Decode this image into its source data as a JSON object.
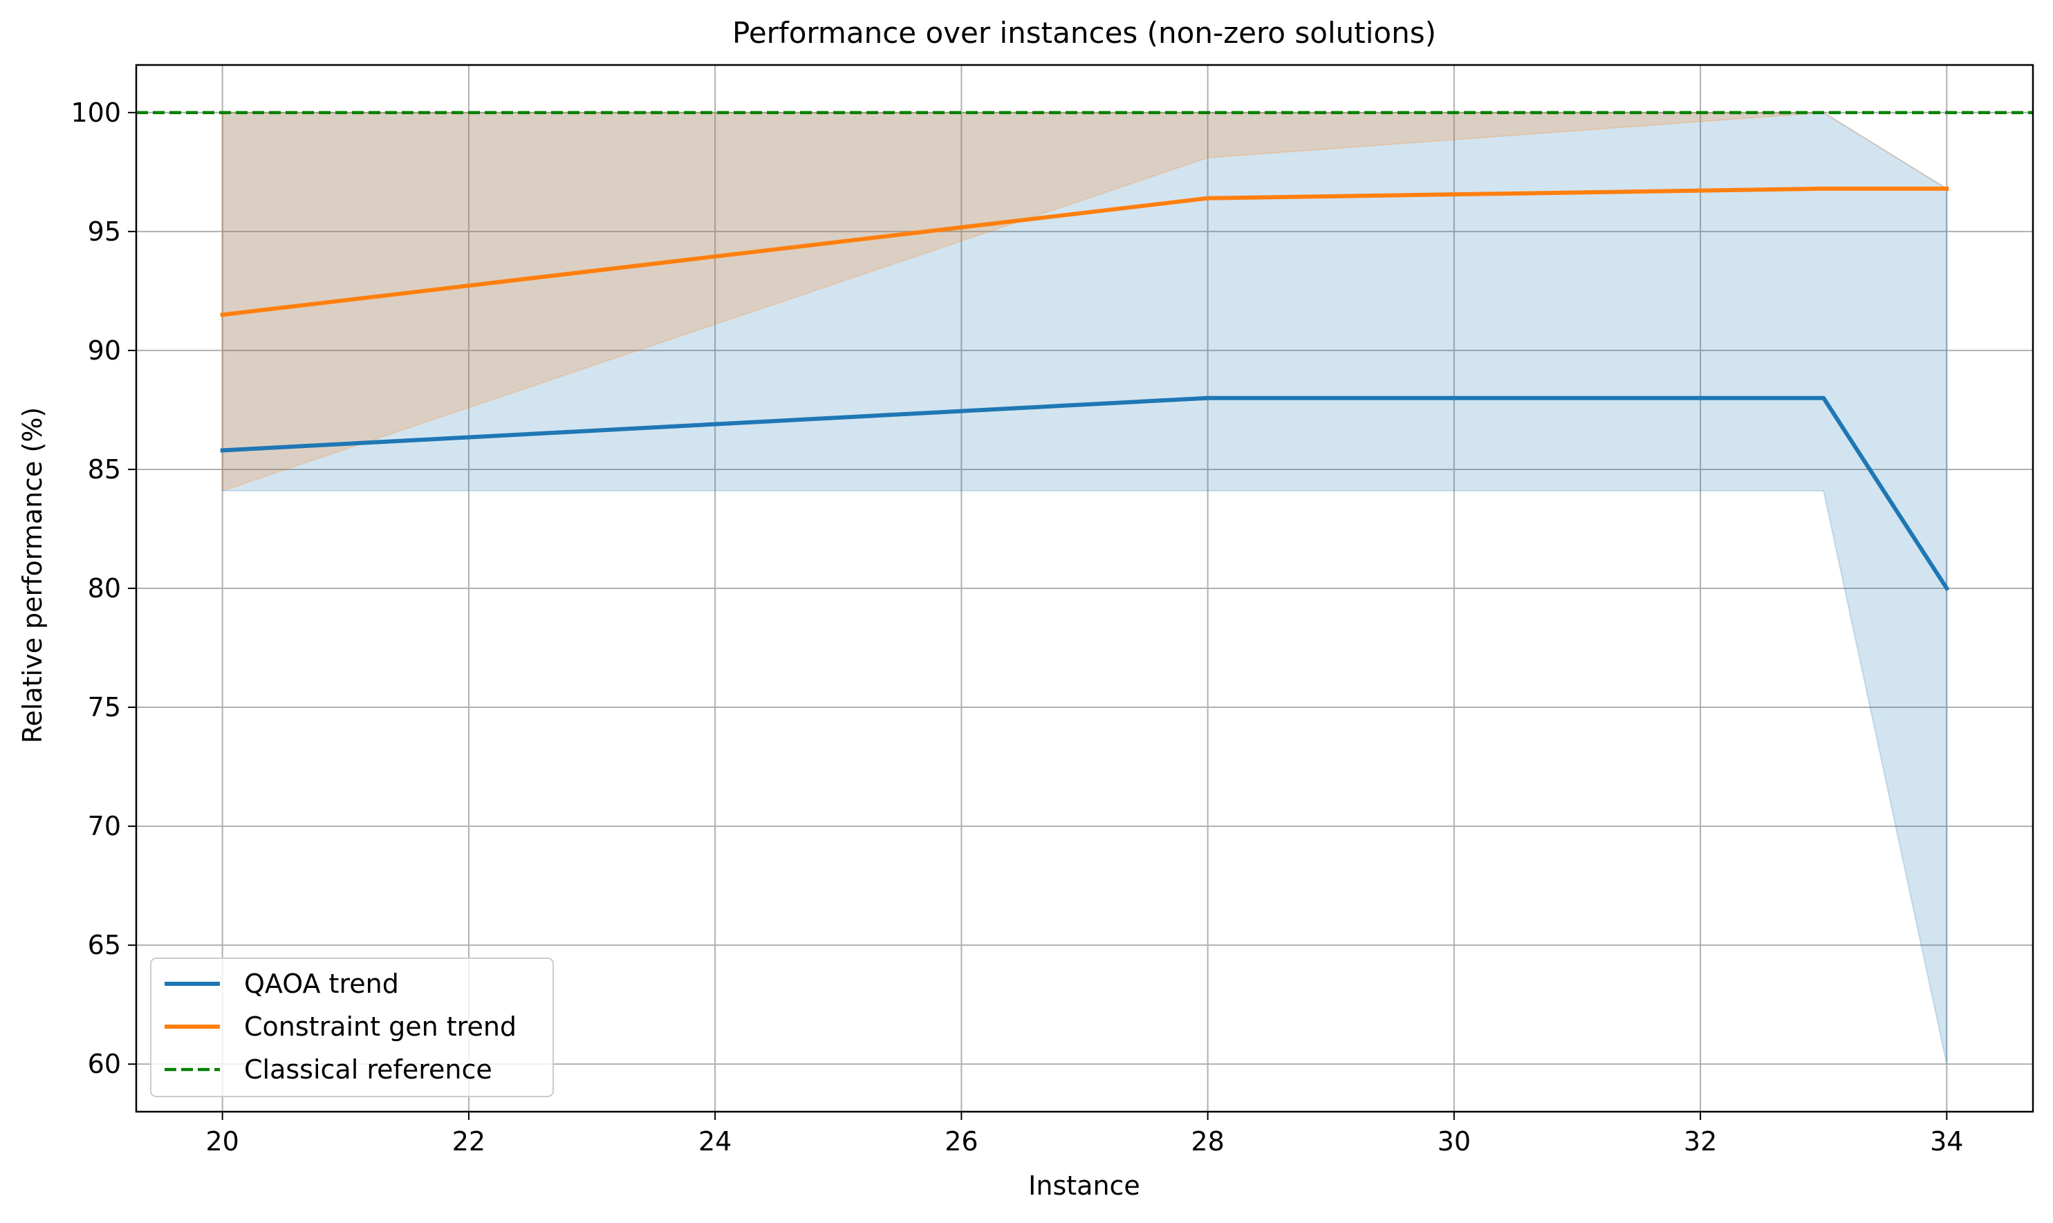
{
  "chart_data": {
    "type": "line",
    "title": "Performance over instances (non-zero solutions)",
    "xlabel": "Instance",
    "ylabel": "Relative performance (%)",
    "xlim": [
      19.3,
      34.7
    ],
    "ylim": [
      58,
      102
    ],
    "xticks": [
      20,
      22,
      24,
      26,
      28,
      30,
      32,
      34
    ],
    "yticks": [
      60,
      65,
      70,
      75,
      80,
      85,
      90,
      95,
      100
    ],
    "grid": true,
    "legend_position": "lower left",
    "series": [
      {
        "name": "QAOA trend",
        "color": "#1f77b4",
        "x": [
          20,
          28,
          33,
          34
        ],
        "y": [
          85.8,
          88.0,
          88.0,
          80.0
        ],
        "band": {
          "x": [
            20,
            28,
            33,
            34
          ],
          "lower": [
            84.1,
            84.1,
            84.1,
            60.0
          ],
          "upper": [
            100.0,
            100.0,
            100.0,
            96.8
          ]
        }
      },
      {
        "name": "Constraint gen trend",
        "color": "#ff7f0e",
        "x": [
          20,
          28,
          33,
          34
        ],
        "y": [
          91.5,
          96.4,
          96.8,
          96.8
        ],
        "band": {
          "x": [
            20,
            28,
            33,
            34
          ],
          "lower": [
            84.1,
            98.1,
            100.0,
            96.8
          ],
          "upper": [
            100.0,
            100.0,
            100.0,
            96.8
          ]
        }
      },
      {
        "name": "Classical reference",
        "color": "#008000",
        "dashed": true,
        "y_const": 100
      }
    ]
  }
}
